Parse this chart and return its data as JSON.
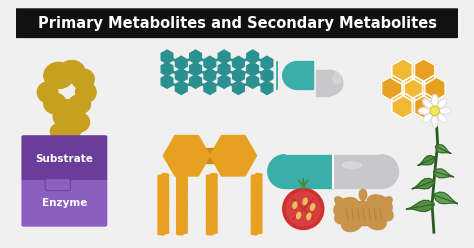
{
  "title": "Primary Metabolites and Secondary Metabolites",
  "title_bg": "#111111",
  "title_color": "#ffffff",
  "bg_color": "#f0f0f0",
  "colors": {
    "golden": "#C8A020",
    "golden2": "#D4B030",
    "teal": "#3AAFA9",
    "teal_dark": "#2B9090",
    "orange": "#E8A020",
    "orange2": "#F0B835",
    "orange_dark": "#CC8A10",
    "purple": "#6B3D9A",
    "purple_light": "#8B5FC0",
    "gray": "#C8C8CC",
    "gray_light": "#DCDCE0",
    "red_tomato": "#D03030",
    "red_inner": "#E05050",
    "green": "#4A8A3A",
    "green_dark": "#2A5A20",
    "green_light": "#5A9A4A",
    "white": "#FFFFFF",
    "ginger": "#C8944A",
    "ginger_dark": "#A87030"
  }
}
